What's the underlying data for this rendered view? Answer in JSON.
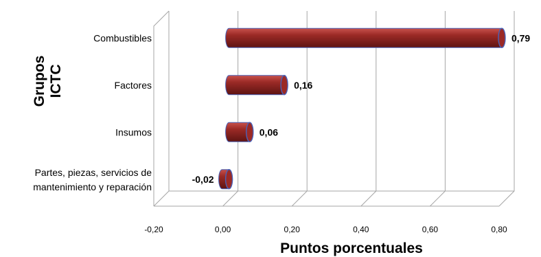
{
  "chart_data": {
    "type": "bar",
    "orientation": "horizontal",
    "categories": [
      "Combustibles",
      "Factores",
      "Insumos",
      [
        "Partes, piezas, servicios de",
        "mantenimiento y reparación"
      ]
    ],
    "values": [
      0.79,
      0.16,
      0.06,
      -0.02
    ],
    "data_labels": [
      "0,79",
      "0,16",
      "0,06",
      "-0,02"
    ],
    "xlim": [
      -0.2,
      0.8
    ],
    "xticks": [
      -0.2,
      0.0,
      0.2,
      0.4,
      0.6,
      0.8
    ],
    "xtick_labels": [
      "-0,20",
      "0,00",
      "0,20",
      "0,40",
      "0,60",
      "0,80"
    ],
    "xlabel": "Puntos porcentuales",
    "ylabel": [
      "Grupos",
      "ICTC"
    ],
    "grid": "vertical",
    "legend": "none",
    "bar_color": "#9b2a26",
    "bar_highlight": "#c9524c",
    "bar_shadow": "#5e1412",
    "cap_color": "#4a62b8"
  }
}
